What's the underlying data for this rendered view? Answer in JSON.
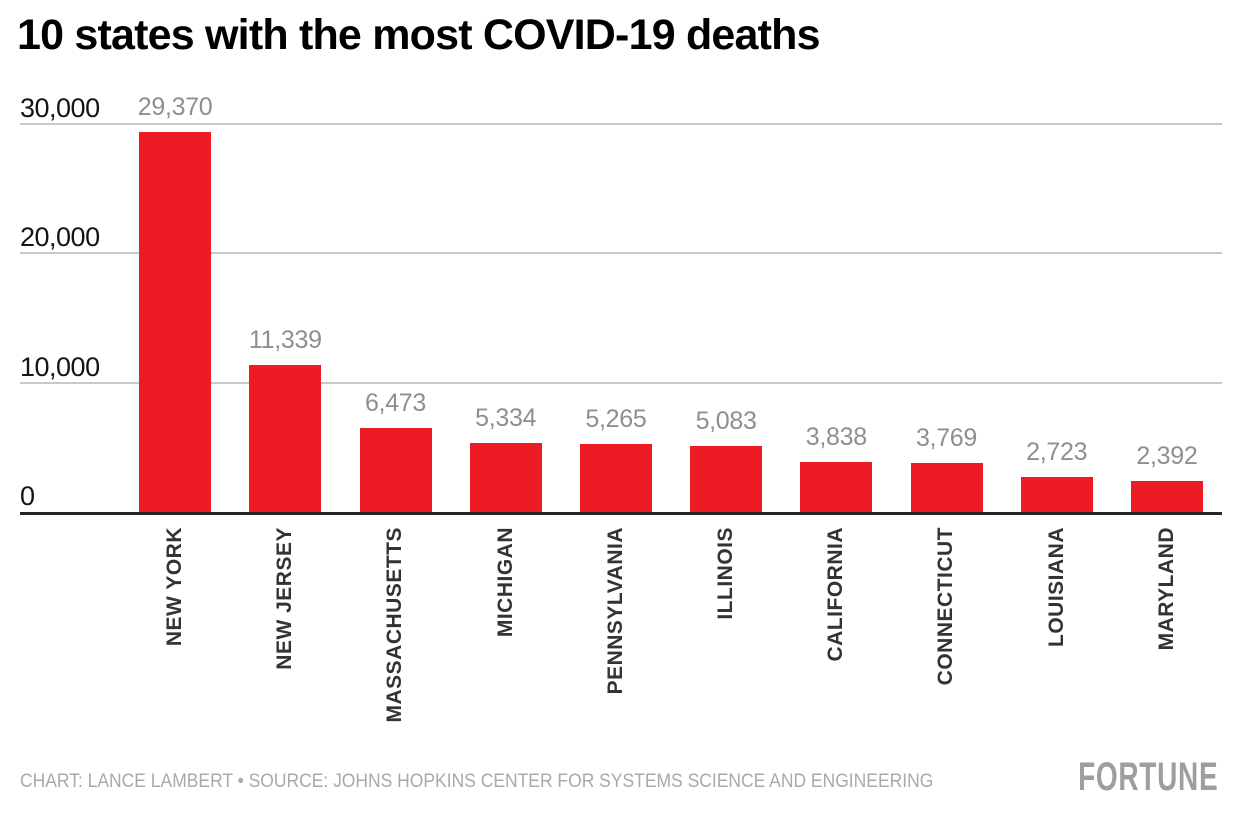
{
  "chart_data": {
    "type": "bar",
    "title": "10 states with the most COVID-19 deaths",
    "categories": [
      "NEW YORK",
      "NEW JERSEY",
      "MASSACHUSETTS",
      "MICHIGAN",
      "PENNSYLVANIA",
      "ILLINOIS",
      "CALIFORNIA",
      "CONNECTICUT",
      "LOUISIANA",
      "MARYLAND"
    ],
    "values": [
      29370,
      11339,
      6473,
      5334,
      5265,
      5083,
      3838,
      3769,
      2723,
      2392
    ],
    "value_labels": [
      "29,370",
      "11,339",
      "6,473",
      "5,334",
      "5,265",
      "5,083",
      "3,838",
      "3,769",
      "2,723",
      "2,392"
    ],
    "xlabel": "",
    "ylabel": "",
    "ylim": [
      0,
      30000
    ],
    "grid": "horizontal",
    "legend": "none",
    "y_axis": {
      "ticks": [
        {
          "label": "30,000",
          "value": 30000
        },
        {
          "label": "20,000",
          "value": 20000
        },
        {
          "label": "10,000",
          "value": 10000
        },
        {
          "label": "0",
          "value": 0
        }
      ]
    },
    "bar_color": "#ED1C24"
  },
  "footer": {
    "credit": "CHART: LANCE LAMBERT • SOURCE: JOHNS HOPKINS CENTER FOR SYSTEMS SCIENCE AND ENGINEERING",
    "brand": "FORTUNE"
  },
  "colors": {
    "bar": "#ED1C24",
    "grid": "#c9c9c9",
    "axis": "#262626",
    "tick_label": "#141414",
    "value_label": "#8f8f8f",
    "state_label": "#333333",
    "credit": "#a9a9a9",
    "brand": "#9e9e9e",
    "background": "#ffffff"
  }
}
